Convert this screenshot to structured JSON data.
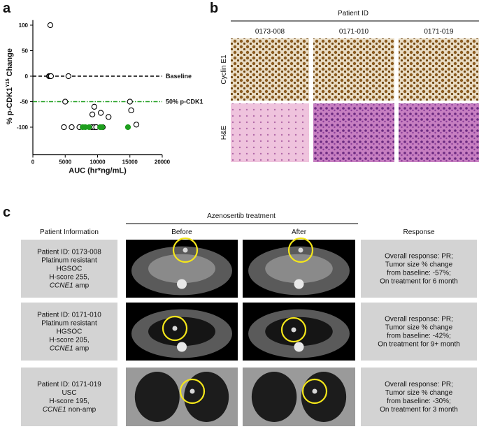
{
  "panel_labels": {
    "a": "a",
    "b": "b",
    "c": "c"
  },
  "chart_data": {
    "type": "scatter",
    "xlabel": "AUC (hr*ng/mL)",
    "ylabel": "% p-CDK1",
    "ylabel_sup": "Y15",
    "ylabel_suffix": "Change",
    "xlim": [
      0,
      20000
    ],
    "xticks": [
      0,
      5000,
      10000,
      15000,
      20000
    ],
    "ylim": [
      -150,
      110
    ],
    "yticks": [
      -100,
      -50,
      0,
      50,
      100
    ],
    "series": [
      {
        "color": "#000000",
        "filled": false,
        "x": [
          2700,
          2500,
          2650,
          2800,
          5500,
          5000,
          15000,
          4800,
          6000,
          7200,
          9100,
          9500,
          9800,
          10800,
          9500,
          9200,
          10500,
          11700,
          15200,
          16000
        ],
        "values": [
          100,
          0,
          0,
          0,
          0,
          -50,
          -50,
          -100,
          -100,
          -100,
          -100,
          -100,
          -100,
          -100,
          -60,
          -75,
          -72,
          -80,
          -67,
          -95
        ]
      },
      {
        "color": "#1e9e1e",
        "filled": true,
        "x": [
          7700,
          8100,
          8700,
          10400,
          10700,
          14700
        ],
        "values": [
          -100,
          -100,
          -100,
          -100,
          -100,
          -100
        ]
      }
    ],
    "reference_lines": [
      {
        "value": 0,
        "label": "Baseline",
        "color": "#000000",
        "style": "dashed"
      },
      {
        "value": -50,
        "label": "50% p-CDK1",
        "color": "#1e9e1e",
        "style": "dashdot"
      }
    ]
  },
  "histology": {
    "title": "Patient ID",
    "columns": [
      "0173-008",
      "0171-010",
      "0171-019"
    ],
    "rows": [
      "Cyclin E1",
      "H&E"
    ]
  },
  "ct_table": {
    "group_header": "Azenosertib treatment",
    "headers": [
      "Patient Information",
      "Before",
      "After",
      "Response"
    ],
    "rows": [
      {
        "info": [
          "Patient ID: 0173-008",
          "Platinum resistant",
          "HGSOC",
          "H-score 255,"
        ],
        "gene": "CCNE1",
        "gene_status": "amp",
        "response": [
          "Overall response: PR;",
          "Tumor size % change",
          "from baseline: -57%;",
          "On treatment for 6 month"
        ]
      },
      {
        "info": [
          "Patient ID: 0171-010",
          "Platinum resistant",
          "HGSOC",
          "H-score 205,"
        ],
        "gene": "CCNE1",
        "gene_status": "amp",
        "response": [
          "Overall response: PR;",
          "Tumor size % change",
          "from baseline: -42%;",
          "On treatment for 9+ month"
        ]
      },
      {
        "info": [
          "Patient ID: 0171-019",
          "USC",
          "H-score 195,"
        ],
        "gene": "CCNE1",
        "gene_status": "non-amp",
        "response": [
          "Overall response: PR;",
          "Tumor size % change",
          "from baseline: -30%;",
          "On treatment for 3 month"
        ]
      }
    ]
  }
}
